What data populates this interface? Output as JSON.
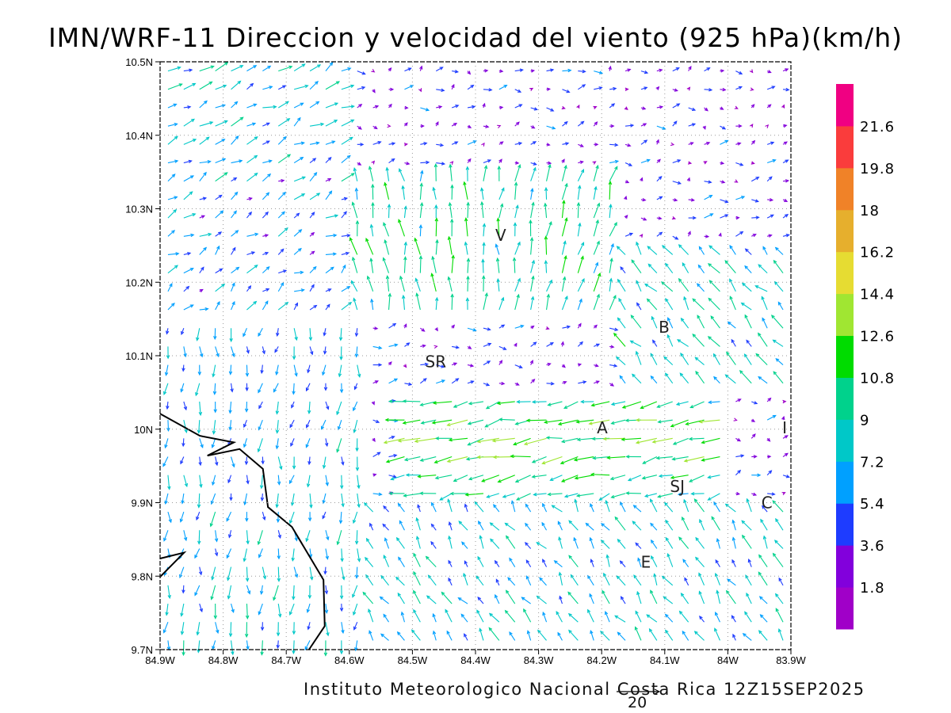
{
  "title": "IMN/WRF-11 Direccion y velocidad del viento (925 hPa)(km/h)",
  "footer": "Instituto Meteorologico Nacional Costa Rica 12Z15SEP2025",
  "reference_vector": {
    "label": "20",
    "value_kmh": 20
  },
  "map": {
    "lon_range_west": [
      84.9,
      83.9
    ],
    "lat_range": [
      9.7,
      10.5
    ],
    "x_ticks": [
      "84.9W",
      "84.8W",
      "84.7W",
      "84.6W",
      "84.5W",
      "84.4W",
      "84.3W",
      "84.2W",
      "84.1W",
      "84W",
      "83.9W"
    ],
    "y_ticks": [
      "9.7N",
      "9.8N",
      "9.9N",
      "10N",
      "10.1N",
      "10.2N",
      "10.3N",
      "10.4N",
      "10.5N"
    ],
    "grid_spacing_deg": 0.025,
    "cities": [
      {
        "label": "V",
        "lon": 84.36,
        "lat": 10.264
      },
      {
        "label": "SR",
        "lon": 84.463,
        "lat": 10.092
      },
      {
        "label": "B",
        "lon": 84.101,
        "lat": 10.139
      },
      {
        "label": "A",
        "lon": 84.199,
        "lat": 10.002
      },
      {
        "label": "SJ",
        "lon": 84.08,
        "lat": 9.922
      },
      {
        "label": "C",
        "lon": 83.938,
        "lat": 9.9
      },
      {
        "label": "E",
        "lon": 84.13,
        "lat": 9.819
      },
      {
        "label": "I",
        "lon": 83.91,
        "lat": 10.002
      }
    ],
    "coastline": [
      [
        [
          84.9,
          10.021
        ],
        [
          84.837,
          9.991
        ],
        [
          84.783,
          9.982
        ],
        [
          84.825,
          9.964
        ],
        [
          84.774,
          9.973
        ],
        [
          84.737,
          9.946
        ],
        [
          84.729,
          9.894
        ],
        [
          84.691,
          9.867
        ],
        [
          84.641,
          9.795
        ],
        [
          84.639,
          9.732
        ],
        [
          84.664,
          9.7
        ]
      ],
      [
        [
          84.9,
          9.824
        ],
        [
          84.862,
          9.832
        ],
        [
          84.9,
          9.799
        ]
      ]
    ]
  },
  "colorbar": {
    "labels": [
      "1.8",
      "3.6",
      "5.4",
      "7.2",
      "9",
      "10.8",
      "12.6",
      "14.4",
      "16.2",
      "18",
      "19.8",
      "21.6"
    ],
    "colors": [
      "#a000c8",
      "#8200dc",
      "#1e3cff",
      "#00a0ff",
      "#00c8c8",
      "#00d28c",
      "#00dc00",
      "#a0e632",
      "#e6dc32",
      "#e6af2d",
      "#f08228",
      "#fa3c3c",
      "#f00082"
    ]
  }
}
